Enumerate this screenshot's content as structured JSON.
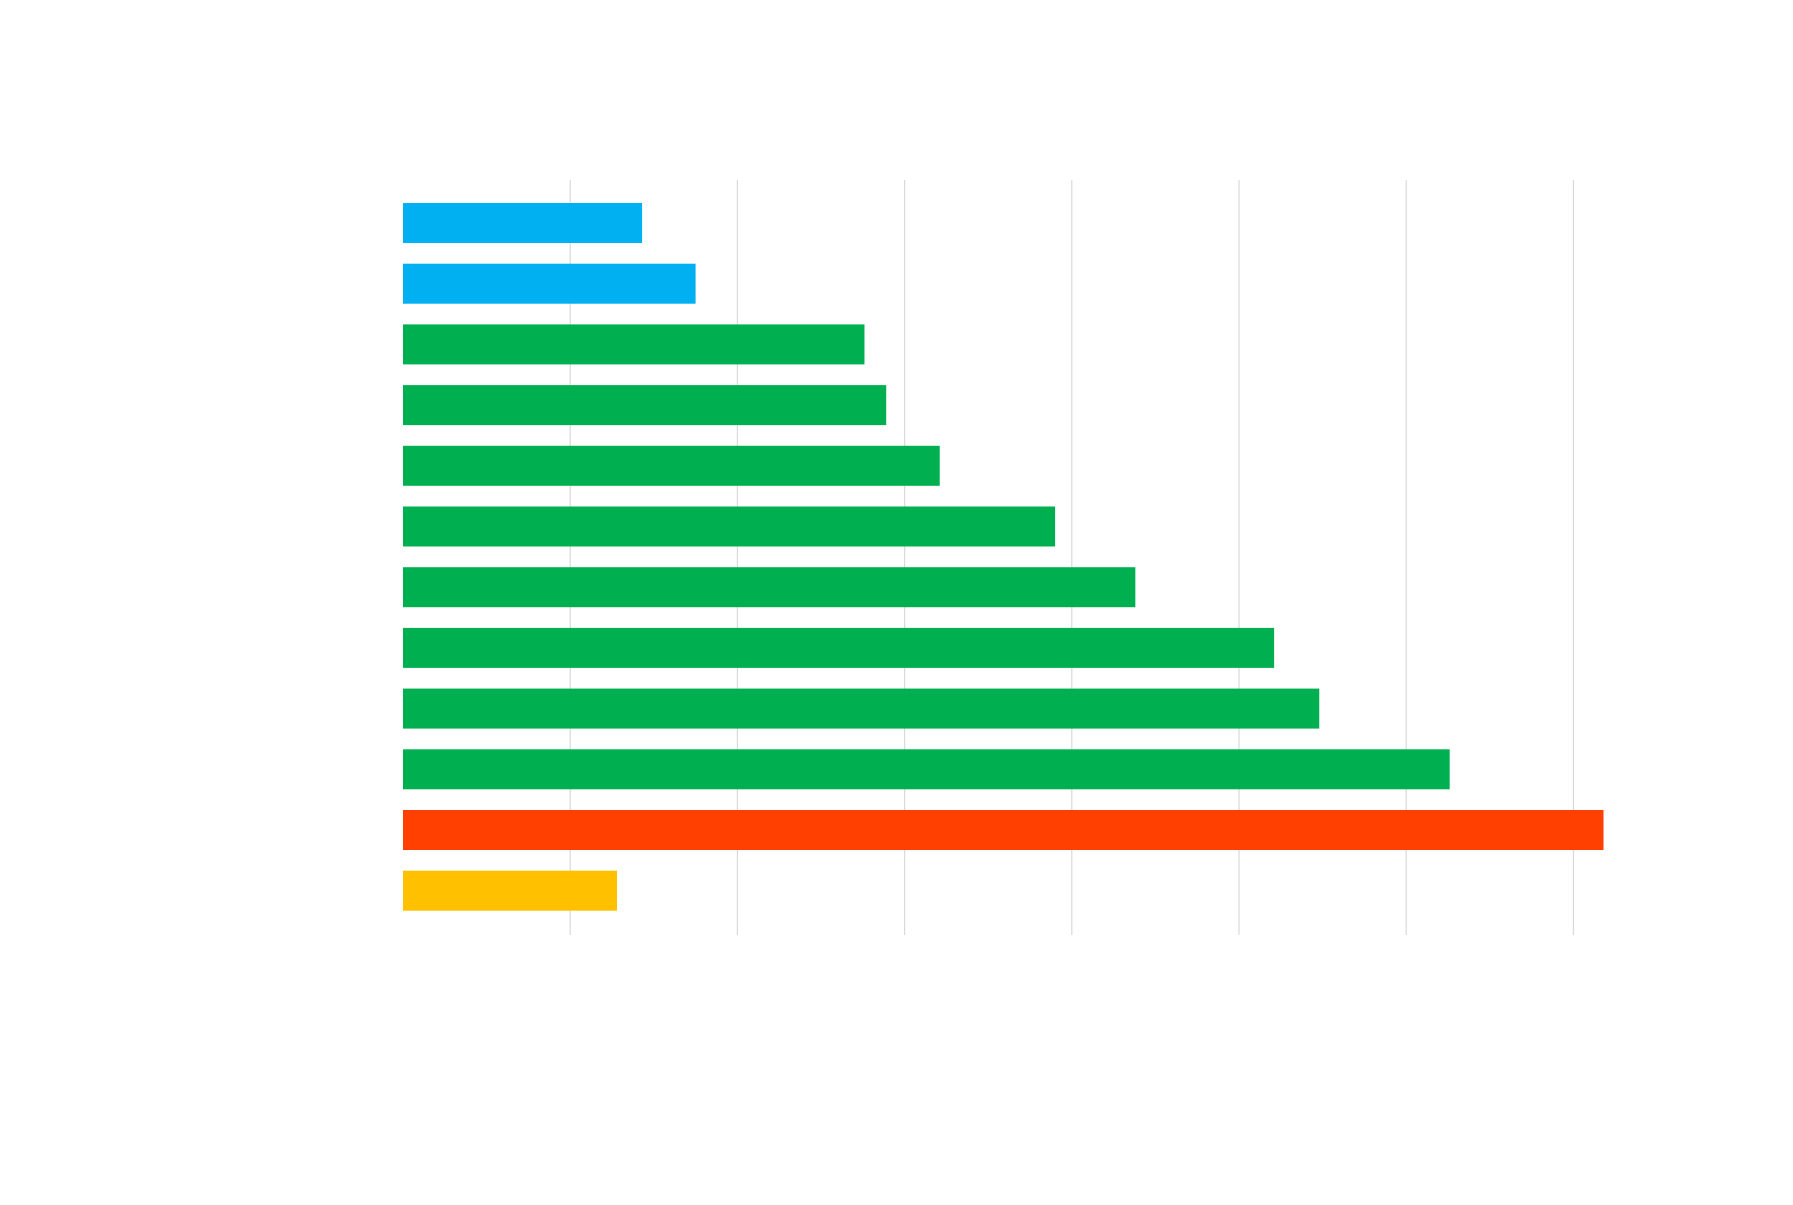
{
  "chart_data": {
    "type": "bar",
    "orientation": "horizontal",
    "title": "",
    "xlabel": "",
    "ylabel": "",
    "xlim": [
      0,
      7.2
    ],
    "x_ticks": [
      1,
      2,
      3,
      4,
      5,
      6,
      7
    ],
    "grid": true,
    "values": [
      1.43,
      1.75,
      2.76,
      2.89,
      3.21,
      3.9,
      4.38,
      5.21,
      5.48,
      6.26,
      7.18,
      1.28
    ],
    "bar_colors": [
      "#00b0f0",
      "#00b0f0",
      "#00b050",
      "#00b050",
      "#00b050",
      "#00b050",
      "#00b050",
      "#00b050",
      "#00b050",
      "#00b050",
      "#ff4000",
      "#ffc000"
    ],
    "grid_color": "#d9d9d9"
  }
}
